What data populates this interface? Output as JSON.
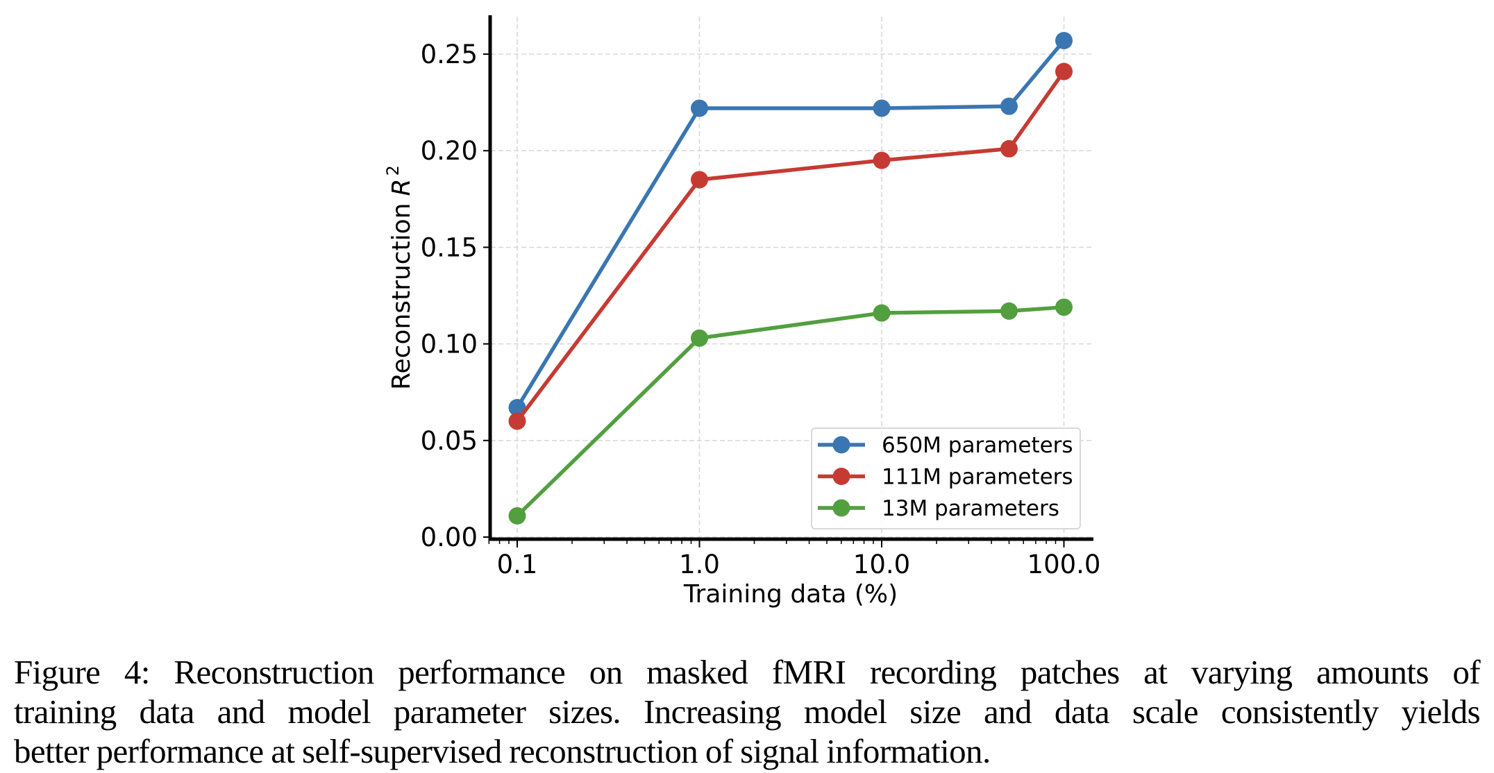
{
  "chart_data": {
    "type": "line",
    "title": "",
    "xlabel": "Training data (%)",
    "ylabel": "Reconstruction",
    "ylabel_symbol": "R",
    "ylabel_superscript": "2",
    "xscale": "log",
    "x": [
      0.1,
      1.0,
      10.0,
      50.0,
      100.0
    ],
    "xticks": [
      0.1,
      1.0,
      10.0,
      100.0
    ],
    "xtick_labels": [
      "0.1",
      "1.0",
      "10.0",
      "100.0"
    ],
    "yticks": [
      0.0,
      0.05,
      0.1,
      0.15,
      0.2,
      0.25
    ],
    "ytick_labels": [
      "0.00",
      "0.05",
      "0.10",
      "0.15",
      "0.20",
      "0.25"
    ],
    "xlim": [
      0.07,
      145
    ],
    "ylim": [
      0.0,
      0.27
    ],
    "grid": true,
    "legend_position": "lower-right",
    "series": [
      {
        "name": "650M parameters",
        "color": "#3a76b1",
        "values": [
          0.067,
          0.222,
          0.222,
          0.223,
          0.257
        ]
      },
      {
        "name": "111M parameters",
        "color": "#c53b33",
        "values": [
          0.06,
          0.185,
          0.195,
          0.201,
          0.241
        ]
      },
      {
        "name": "13M parameters",
        "color": "#529f3f",
        "values": [
          0.011,
          0.103,
          0.116,
          0.117,
          0.119
        ]
      }
    ]
  },
  "caption": {
    "lines": [
      "Figure 4: Reconstruction performance on masked fMRI recording patches at varying amounts of",
      "training data and model parameter sizes. Increasing model size and data scale consistently yields",
      "better performance at self-supervised reconstruction of signal information."
    ]
  }
}
